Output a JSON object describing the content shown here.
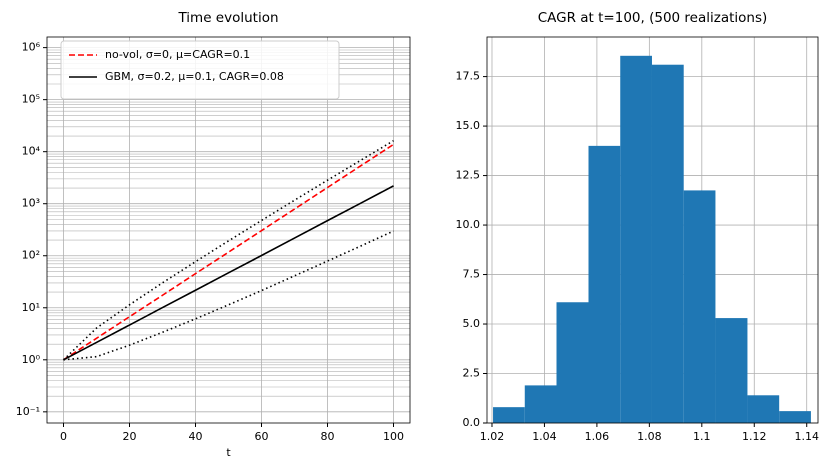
{
  "chart_data": [
    {
      "type": "line",
      "title": "Time evolution",
      "xlabel": "t",
      "log_y": true,
      "grid": true,
      "minor_grid": true,
      "legend": "upper left",
      "x": [
        0,
        10,
        20,
        30,
        40,
        50,
        60,
        70,
        80,
        90,
        100
      ],
      "series": [
        {
          "name": "no-vol, σ=0, μ=CAGR=0.1",
          "color": "#ff0000",
          "style": "dashed",
          "values": [
            1,
            2.59,
            6.73,
            17.4,
            45.3,
            117,
            304,
            789,
            2048,
            5313,
            13781
          ]
        },
        {
          "name": "GBM, σ=0.2, μ=0.1, CAGR=0.08",
          "color": "#000000",
          "style": "solid",
          "values": [
            1,
            2.16,
            4.66,
            10.1,
            21.7,
            46.9,
            101,
            219,
            473,
            1019,
            2200
          ]
        },
        {
          "color": "#000000",
          "style": "dotted",
          "values": [
            1,
            4.07,
            11.4,
            30.2,
            76.9,
            193,
            476,
            1167,
            2829,
            6797,
            16256
          ]
        },
        {
          "color": "#000000",
          "style": "dotted",
          "values": [
            1,
            1.15,
            1.91,
            3.38,
            6.13,
            11.4,
            21.4,
            41.1,
            79.1,
            153,
            298
          ]
        }
      ],
      "xlim": [
        -5,
        105
      ],
      "xticks": [
        0,
        20,
        40,
        60,
        80,
        100
      ],
      "ylim": [
        0.061,
        1600000
      ],
      "yticks": [
        {
          "value": 0.1,
          "label": "10⁻¹"
        },
        {
          "value": 1,
          "label": "10⁰"
        },
        {
          "value": 10,
          "label": "10¹"
        },
        {
          "value": 100,
          "label": "10²"
        },
        {
          "value": 1000,
          "label": "10³"
        },
        {
          "value": 10000,
          "label": "10⁴"
        },
        {
          "value": 100000,
          "label": "10⁵"
        },
        {
          "value": 1000000,
          "label": "10⁶"
        }
      ]
    },
    {
      "type": "histogram",
      "title": "CAGR at t=100, (500 realizations)",
      "grid": true,
      "color": "#1f77b4",
      "bins": [
        1.0204,
        1.0325,
        1.0446,
        1.0568,
        1.0689,
        1.081,
        1.0931,
        1.1052,
        1.1174,
        1.1295,
        1.1416
      ],
      "values": [
        0.8,
        1.9,
        6.1,
        14.0,
        18.55,
        18.1,
        11.75,
        5.3,
        1.4,
        0.6
      ],
      "xlim": [
        1.0181,
        1.1443
      ],
      "xticks": [
        1.02,
        1.04,
        1.06,
        1.08,
        1.1,
        1.12,
        1.14
      ],
      "ylim": [
        0,
        19.5
      ],
      "yticks": [
        {
          "value": 0,
          "label": "0.0"
        },
        {
          "value": 2.5,
          "label": "2.5"
        },
        {
          "value": 5,
          "label": "5.0"
        },
        {
          "value": 7.5,
          "label": "7.5"
        },
        {
          "value": 10,
          "label": "10.0"
        },
        {
          "value": 12.5,
          "label": "12.5"
        },
        {
          "value": 15,
          "label": "15.0"
        },
        {
          "value": 17.5,
          "label": "17.5"
        }
      ]
    }
  ]
}
